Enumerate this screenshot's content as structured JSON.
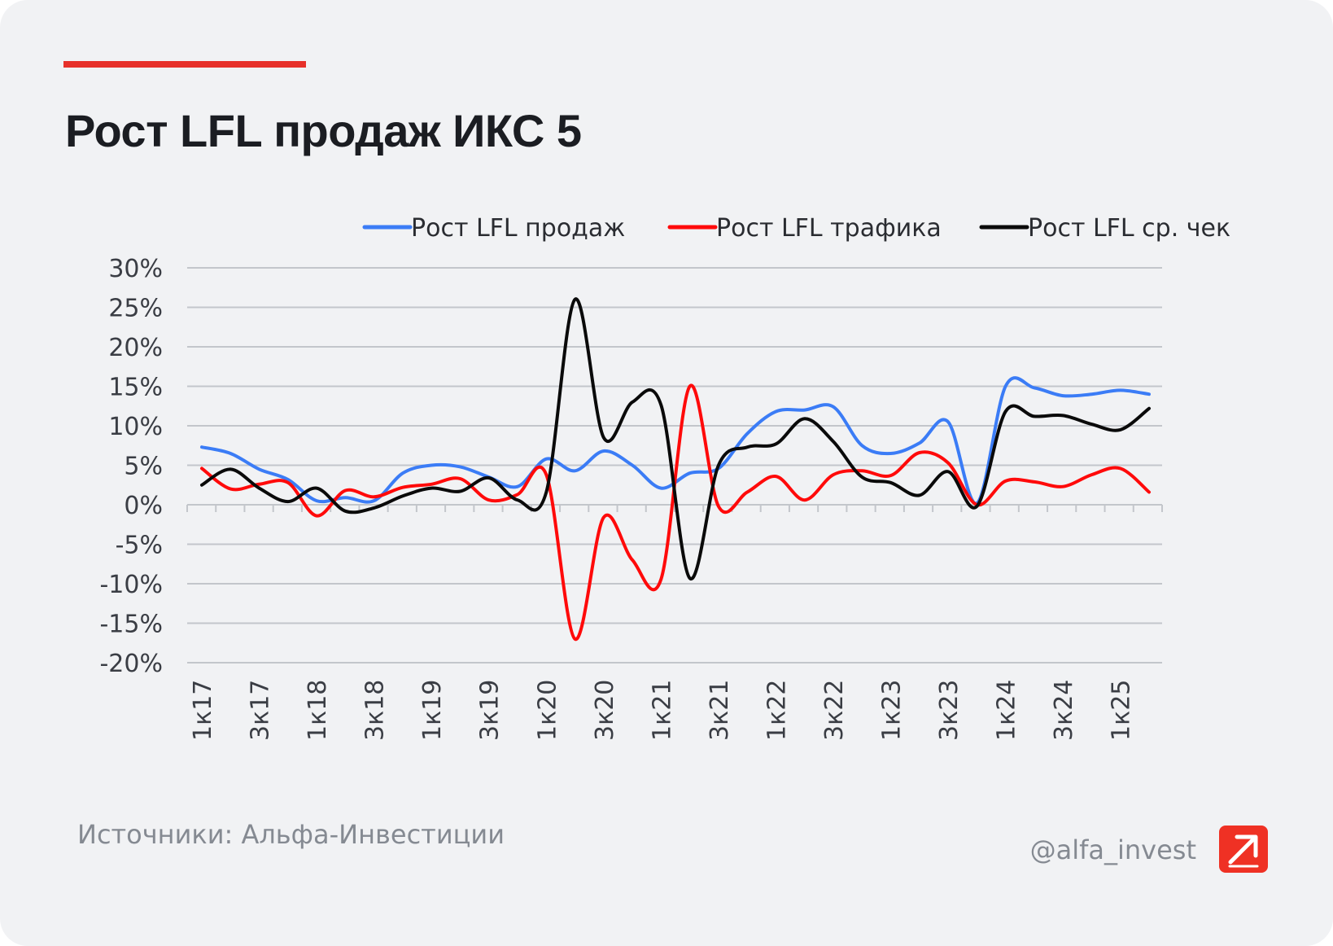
{
  "title": "Рост LFL продаж ИКС 5",
  "source": "Источники: Альфа-Инвестиции",
  "handle": "@alfa_invest",
  "colors": {
    "accent": "#e7312a",
    "sales": "#3b7cf6",
    "traffic": "#ff0a0a",
    "check": "#0a0a0a",
    "grid": "#c3c6cb",
    "text": "#3a3d44"
  },
  "chart_data": {
    "type": "line",
    "title": "Рост LFL продаж ИКС 5",
    "x": [
      "1к17",
      "2к17",
      "3к17",
      "4к17",
      "1к18",
      "2к18",
      "3к18",
      "4к18",
      "1к19",
      "2к19",
      "3к19",
      "4к19",
      "1к20",
      "2к20",
      "3к20",
      "4к20",
      "1к21",
      "2к21",
      "3к21",
      "4к21",
      "1к22",
      "2к22",
      "3к22",
      "4к22",
      "1к23",
      "2к23",
      "3к23",
      "4к23",
      "1к24",
      "2к24",
      "3к24",
      "4к24",
      "1к25",
      "2к25"
    ],
    "x_tick_labels": [
      "1к17",
      "3к17",
      "1к18",
      "3к18",
      "1к19",
      "3к19",
      "1к20",
      "3к20",
      "1к21",
      "3к21",
      "1к22",
      "3к22",
      "1к23",
      "3к23",
      "1к24",
      "3к24",
      "1к25"
    ],
    "y_ticks": [
      "30%",
      "25%",
      "20%",
      "15%",
      "10%",
      "5%",
      "0%",
      "-5%",
      "-10%",
      "-15%",
      "-20%"
    ],
    "ylim": [
      -20,
      30
    ],
    "y_unit": "%",
    "grid": true,
    "legend_position": "top",
    "series": [
      {
        "name": "Рост LFL продаж",
        "color": "#3b7cf6",
        "values": [
          7.3,
          6.5,
          4.5,
          3.2,
          0.5,
          0.9,
          0.5,
          4.0,
          5.0,
          4.8,
          3.5,
          2.3,
          5.8,
          4.3,
          6.8,
          5.0,
          2.1,
          4.0,
          4.6,
          9.0,
          11.8,
          12.0,
          12.4,
          7.5,
          6.5,
          7.8,
          10.5,
          0.2,
          15.0,
          14.8,
          13.8,
          14.0,
          14.5,
          14.0
        ]
      },
      {
        "name": "Рост LFL трафика",
        "color": "#ff0a0a",
        "values": [
          4.6,
          2.0,
          2.6,
          2.8,
          -1.4,
          1.8,
          1.0,
          2.2,
          2.6,
          3.3,
          0.6,
          1.3,
          3.8,
          -17.0,
          -1.6,
          -7.0,
          -9.4,
          15.0,
          -0.2,
          1.6,
          3.6,
          0.6,
          3.8,
          4.3,
          3.7,
          6.6,
          5.3,
          0.0,
          3.0,
          2.9,
          2.3,
          3.8,
          4.6,
          1.6
        ]
      },
      {
        "name": "Рост LFL ср. чек",
        "color": "#0a0a0a",
        "values": [
          2.5,
          4.5,
          2.1,
          0.4,
          2.1,
          -0.8,
          -0.4,
          1.1,
          2.1,
          1.7,
          3.4,
          0.6,
          1.6,
          26.0,
          8.5,
          13.0,
          12.6,
          -9.3,
          5.0,
          7.3,
          7.7,
          10.9,
          8.0,
          3.5,
          2.8,
          1.2,
          4.2,
          -0.2,
          11.8,
          11.2,
          11.3,
          10.2,
          9.5,
          12.2
        ]
      }
    ]
  }
}
